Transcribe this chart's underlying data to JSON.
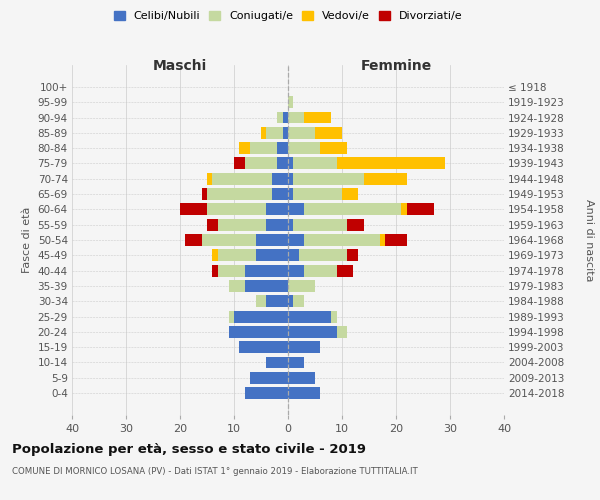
{
  "age_groups": [
    "100+",
    "95-99",
    "90-94",
    "85-89",
    "80-84",
    "75-79",
    "70-74",
    "65-69",
    "60-64",
    "55-59",
    "50-54",
    "45-49",
    "40-44",
    "35-39",
    "30-34",
    "25-29",
    "20-24",
    "15-19",
    "10-14",
    "5-9",
    "0-4"
  ],
  "birth_years": [
    "≤ 1918",
    "1919-1923",
    "1924-1928",
    "1929-1933",
    "1934-1938",
    "1939-1943",
    "1944-1948",
    "1949-1953",
    "1954-1958",
    "1959-1963",
    "1964-1968",
    "1969-1973",
    "1974-1978",
    "1979-1983",
    "1984-1988",
    "1989-1993",
    "1994-1998",
    "1999-2003",
    "2004-2008",
    "2009-2013",
    "2014-2018"
  ],
  "males": {
    "celibi": [
      0,
      0,
      1,
      1,
      2,
      2,
      3,
      3,
      4,
      4,
      6,
      6,
      8,
      8,
      4,
      10,
      11,
      9,
      4,
      7,
      8
    ],
    "coniugati": [
      0,
      0,
      1,
      3,
      5,
      6,
      11,
      12,
      11,
      9,
      10,
      7,
      5,
      3,
      2,
      1,
      0,
      0,
      0,
      0,
      0
    ],
    "vedovi": [
      0,
      0,
      0,
      1,
      2,
      0,
      1,
      0,
      0,
      0,
      0,
      1,
      0,
      0,
      0,
      0,
      0,
      0,
      0,
      0,
      0
    ],
    "divorziati": [
      0,
      0,
      0,
      0,
      0,
      2,
      0,
      1,
      5,
      2,
      3,
      0,
      1,
      0,
      0,
      0,
      0,
      0,
      0,
      0,
      0
    ]
  },
  "females": {
    "nubili": [
      0,
      0,
      0,
      0,
      0,
      1,
      1,
      1,
      3,
      1,
      3,
      2,
      3,
      0,
      1,
      8,
      9,
      6,
      3,
      5,
      6
    ],
    "coniugate": [
      0,
      1,
      3,
      5,
      6,
      8,
      13,
      9,
      18,
      10,
      14,
      9,
      6,
      5,
      2,
      1,
      2,
      0,
      0,
      0,
      0
    ],
    "vedove": [
      0,
      0,
      5,
      5,
      5,
      20,
      8,
      3,
      1,
      0,
      1,
      0,
      0,
      0,
      0,
      0,
      0,
      0,
      0,
      0,
      0
    ],
    "divorziate": [
      0,
      0,
      0,
      0,
      0,
      0,
      0,
      0,
      5,
      3,
      4,
      2,
      3,
      0,
      0,
      0,
      0,
      0,
      0,
      0,
      0
    ]
  },
  "colors": {
    "celibi": "#4472c4",
    "coniugati": "#c5d9a0",
    "vedovi": "#ffc000",
    "divorziati": "#c00000"
  },
  "title": "Popolazione per età, sesso e stato civile - 2019",
  "subtitle": "COMUNE DI MORNICO LOSANA (PV) - Dati ISTAT 1° gennaio 2019 - Elaborazione TUTTITALIA.IT",
  "xlabel_left": "Maschi",
  "xlabel_right": "Femmine",
  "ylabel_left": "Fasce di età",
  "ylabel_right": "Anni di nascita",
  "xlim": 40,
  "legend_labels": [
    "Celibi/Nubili",
    "Coniugati/e",
    "Vedovi/e",
    "Divorziati/e"
  ],
  "background_color": "#f5f5f5"
}
